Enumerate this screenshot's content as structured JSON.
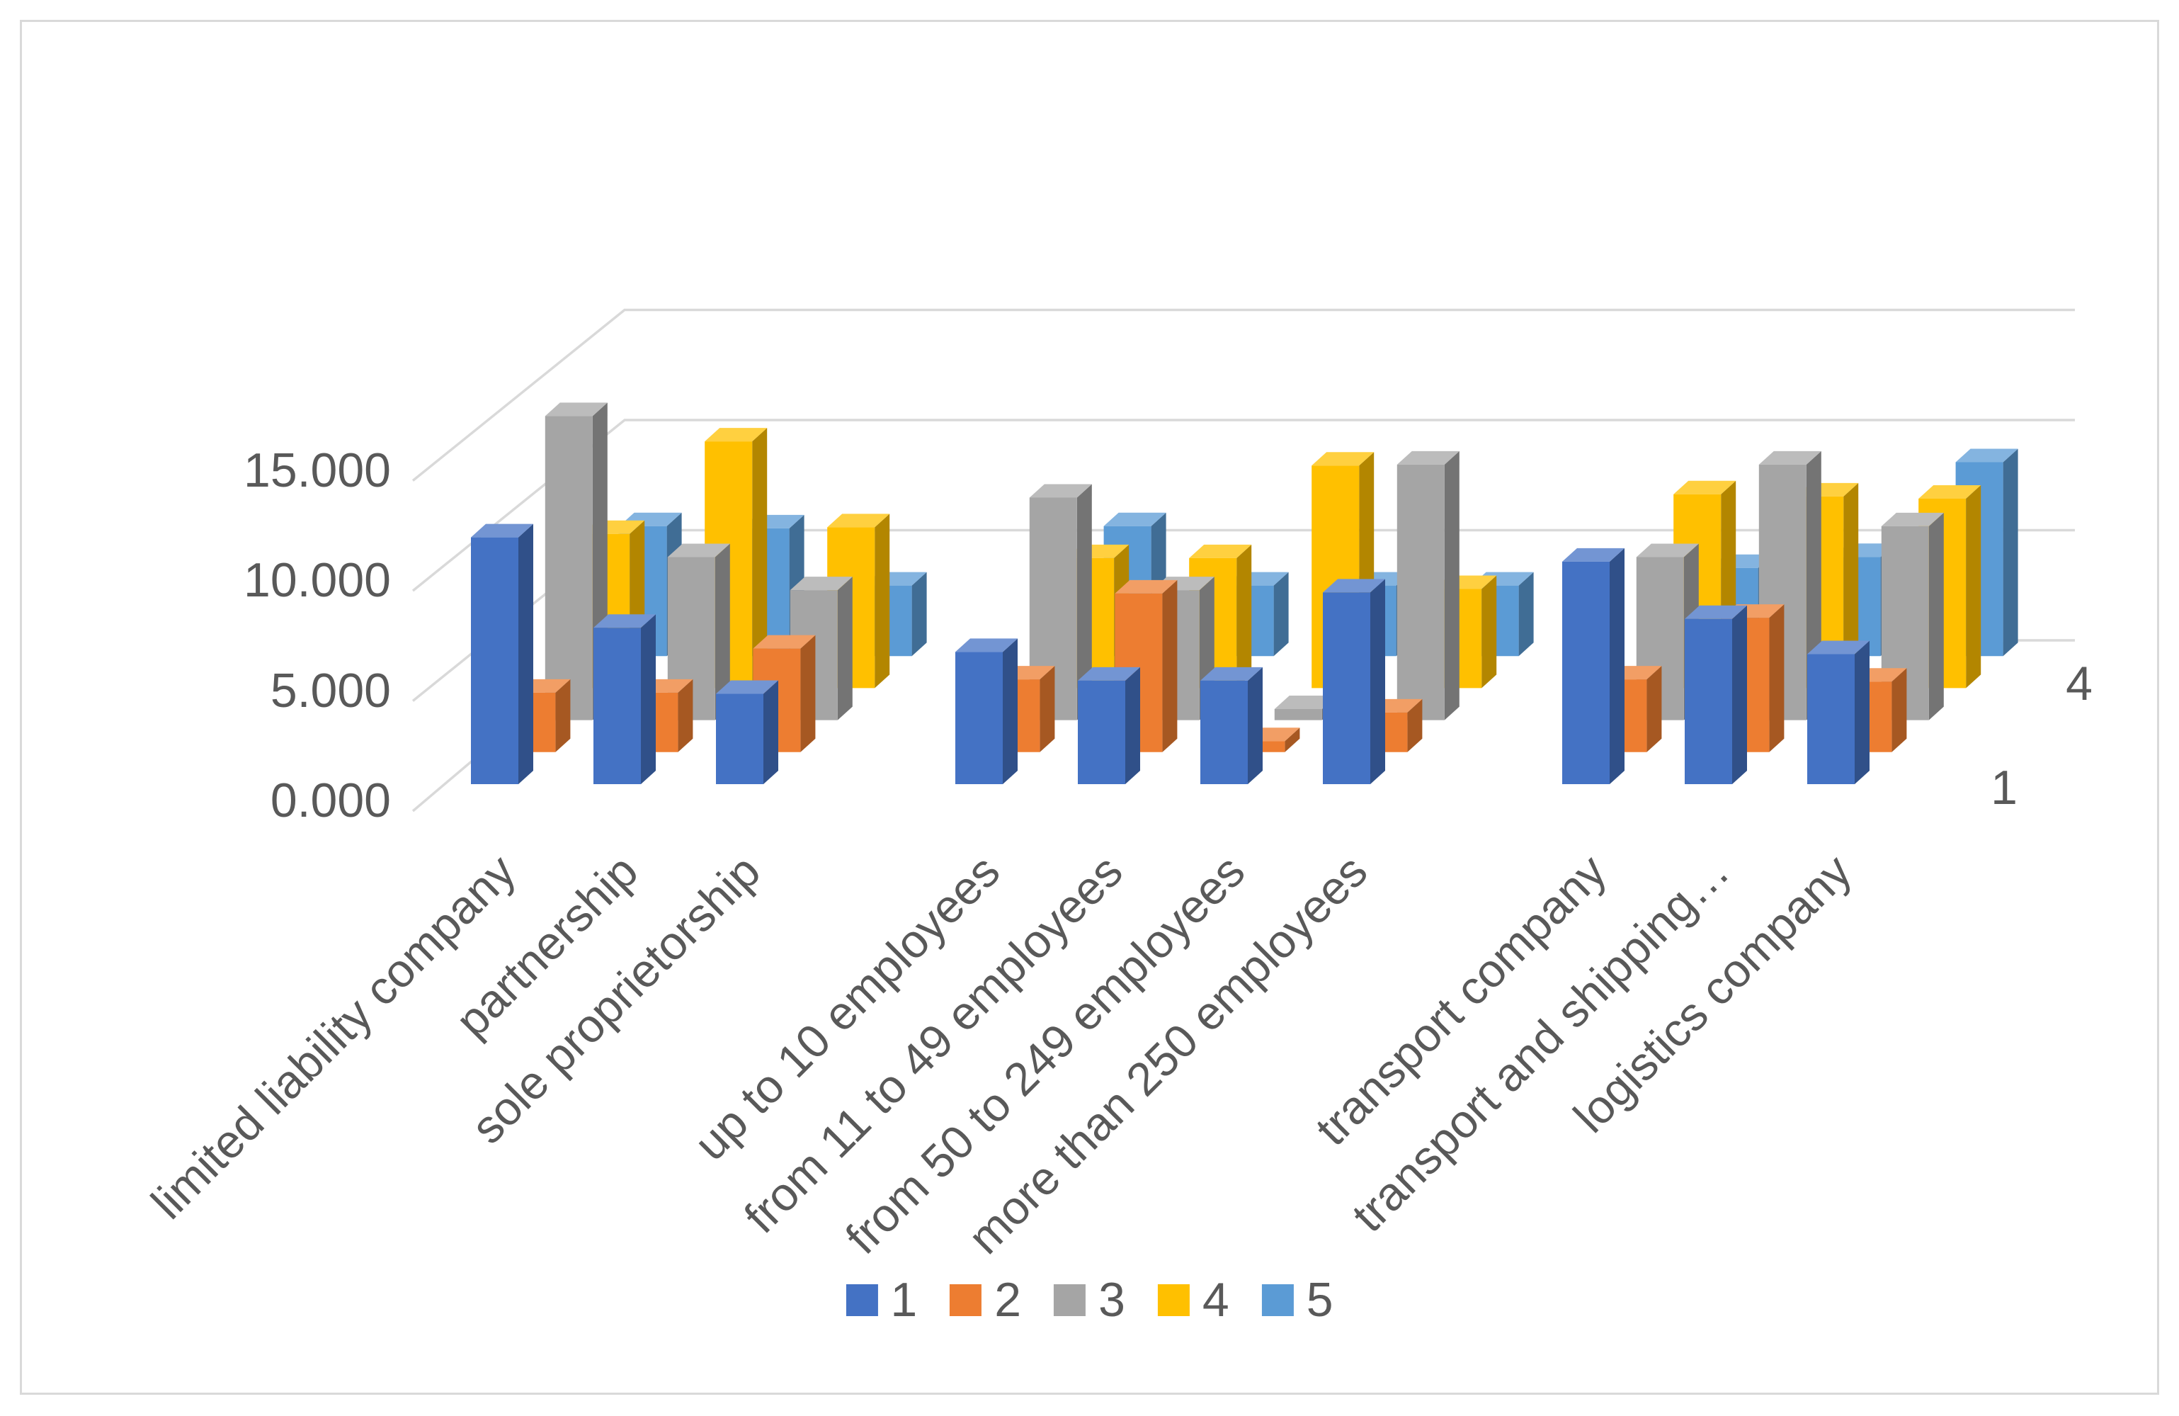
{
  "chart_data": {
    "type": "bar",
    "subtype": "3d-clustered-column",
    "title": "",
    "xlabel": "",
    "ylabel": "",
    "value_format_note": "axis uses dot as thousands separator; 15.000 means 15,000 — series values below are in thousands",
    "ylim": [
      0,
      16
    ],
    "grid": true,
    "y_tick_labels": [
      "0.000",
      "5.000",
      "10.000",
      "15.000"
    ],
    "y_tick_values": [
      0,
      5,
      10,
      15
    ],
    "depth_axis_labels": [
      "1",
      "4"
    ],
    "legend_position": "bottom",
    "categories": [
      "limited liability company",
      "partnership",
      "sole proprietorship",
      "up to 10 employees",
      "from 11 to 49 employees",
      "from 50 to 249 employees",
      "more than 250 employees",
      "transport company",
      "transport and shipping…",
      "logistics company"
    ],
    "category_group_gap_after_indexes": [
      2,
      6
    ],
    "series": [
      {
        "name": "1",
        "color": "#4472C4",
        "values": [
          11.2,
          7.1,
          4.1,
          6.0,
          4.7,
          4.7,
          8.7,
          10.1,
          7.5,
          5.9
        ]
      },
      {
        "name": "2",
        "color": "#ED7D31",
        "values": [
          2.7,
          2.7,
          4.7,
          3.3,
          7.2,
          0.5,
          1.8,
          3.3,
          6.1,
          3.2
        ]
      },
      {
        "name": "3",
        "color": "#A5A5A5",
        "values": [
          13.8,
          7.4,
          5.9,
          10.1,
          5.9,
          0.5,
          11.6,
          7.4,
          11.6,
          8.8
        ]
      },
      {
        "name": "4",
        "color": "#FFC000",
        "values": [
          7.0,
          11.2,
          7.3,
          5.9,
          5.9,
          10.1,
          4.5,
          8.8,
          8.7,
          8.6
        ]
      },
      {
        "name": "5",
        "color": "#5B9BD5",
        "values": [
          5.9,
          5.8,
          3.2,
          5.9,
          3.2,
          3.2,
          3.2,
          4.0,
          4.5,
          8.8
        ]
      }
    ],
    "colors": {
      "axis_text": "#595959",
      "gridline": "#D9D9D9",
      "background": "#FFFFFF"
    }
  }
}
